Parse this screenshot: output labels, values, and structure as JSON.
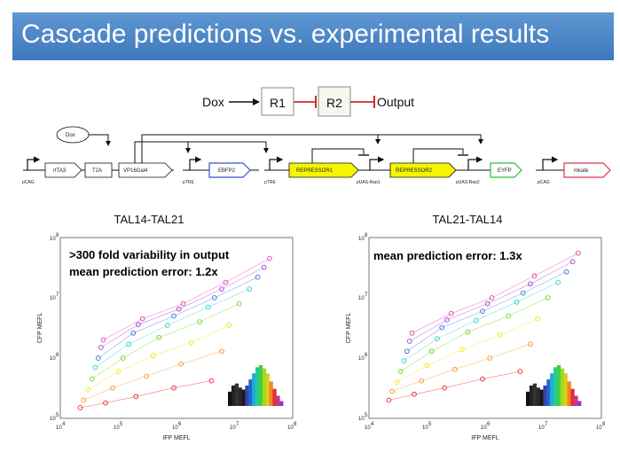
{
  "slide": {
    "title": "Cascade predictions vs. experimental results"
  },
  "cascade": {
    "input": "Dox",
    "node1": "R1",
    "node2": "R2",
    "output": "Output"
  },
  "circuit": {
    "dox": "Dox",
    "parts": {
      "rtta3": "rtTA3",
      "t2a": "T2A",
      "vp16gal4": "VP16Gal4",
      "ebfp2": "EBFP2",
      "repressor1": "REPRESSOR1",
      "repressor2": "REPRESSOR2",
      "eyfp": "EYFP",
      "mkate": "mkate"
    },
    "promoters": {
      "pcag1": "pCAG",
      "ptre1": "pTRE",
      "ptre2": "pTRE",
      "puas1": "pUAS-Rep1",
      "puas2": "pUAS-Rep2",
      "pcag2": "pCAG"
    }
  },
  "colors": {
    "repressor_fill": "#f5f500",
    "ebfp2_border": "#3b4fd6",
    "eyfp_border": "#33bb33",
    "mkate_border": "#d9364f",
    "title_bar": "#4a86c8",
    "inhibit": "#d62a2a"
  },
  "plots": [
    {
      "title": "TAL14-TAL21",
      "xlabel": "IFP MEFL",
      "ylabel": "CFP MEFL",
      "annotations": [
        ">300 fold variability in output",
        "mean prediction error: 1.2x"
      ],
      "x_ticks": [
        "10",
        "10",
        "10",
        "10",
        "10"
      ],
      "x_tick_exps": [
        "4",
        "5",
        "6",
        "7",
        "8"
      ],
      "y_ticks": [
        "10",
        "10",
        "10",
        "10"
      ],
      "y_tick_exps": [
        "5",
        "6",
        "7",
        "8"
      ]
    },
    {
      "title": "TAL21-TAL14",
      "xlabel": "IFP MEFL",
      "ylabel": "CFP MEFL",
      "annotations": [
        "mean prediction error: 1.3x"
      ],
      "x_ticks": [
        "10",
        "10",
        "10",
        "10",
        "10"
      ],
      "x_tick_exps": [
        "4",
        "5",
        "6",
        "7",
        "8"
      ],
      "y_ticks": [
        "10",
        "10",
        "10",
        "10"
      ],
      "y_tick_exps": [
        "5",
        "6",
        "7",
        "8"
      ]
    }
  ],
  "chart_data": [
    {
      "type": "scatter",
      "title": "TAL14-TAL21",
      "xlabel": "IFP MEFL",
      "ylabel": "CFP MEFL",
      "x_scale": "log",
      "y_scale": "log",
      "xlim": [
        10000,
        100000000
      ],
      "ylim": [
        100000,
        100000000
      ],
      "series": [
        {
          "color": "#e6222b",
          "x": [
            22000,
            60000,
            200000,
            900000,
            4000000
          ],
          "y": [
            150000,
            180000,
            230000,
            320000,
            420000
          ]
        },
        {
          "color": "#ff8c1a",
          "x": [
            25000,
            80000,
            300000,
            1200000,
            6000000
          ],
          "y": [
            200000,
            320000,
            500000,
            800000,
            1300000
          ]
        },
        {
          "color": "#f2e600",
          "x": [
            30000,
            100000,
            400000,
            1800000,
            8000000
          ],
          "y": [
            300000,
            600000,
            1100000,
            1800000,
            3500000
          ]
        },
        {
          "color": "#66d61a",
          "x": [
            35000,
            120000,
            500000,
            2500000,
            12000000
          ],
          "y": [
            450000,
            1000000,
            2200000,
            4000000,
            8000000
          ]
        },
        {
          "color": "#1ad6c8",
          "x": [
            40000,
            150000,
            700000,
            3500000,
            18000000
          ],
          "y": [
            700000,
            1700000,
            3500000,
            7000000,
            14000000
          ]
        },
        {
          "color": "#3a6be6",
          "x": [
            45000,
            180000,
            900000,
            4500000,
            25000000
          ],
          "y": [
            1000000,
            2600000,
            5000000,
            10000000,
            22000000
          ]
        },
        {
          "color": "#a33ad6",
          "x": [
            50000,
            220000,
            1100000,
            6000000,
            32000000
          ],
          "y": [
            1500000,
            3600000,
            6500000,
            14000000,
            32000000
          ]
        },
        {
          "color": "#e63aa8",
          "x": [
            55000,
            260000,
            1300000,
            7000000,
            40000000
          ],
          "y": [
            2000000,
            4500000,
            8000000,
            18000000,
            45000000
          ]
        }
      ]
    },
    {
      "type": "scatter",
      "title": "TAL21-TAL14",
      "xlabel": "IFP MEFL",
      "ylabel": "CFP MEFL",
      "x_scale": "log",
      "y_scale": "log",
      "xlim": [
        10000,
        100000000
      ],
      "ylim": [
        100000,
        100000000
      ],
      "series": [
        {
          "color": "#e6222b",
          "x": [
            22000,
            60000,
            200000,
            900000,
            4000000
          ],
          "y": [
            200000,
            250000,
            320000,
            450000,
            600000
          ]
        },
        {
          "color": "#ff8c1a",
          "x": [
            25000,
            80000,
            300000,
            1200000,
            6000000
          ],
          "y": [
            280000,
            420000,
            650000,
            1000000,
            1700000
          ]
        },
        {
          "color": "#f2e600",
          "x": [
            30000,
            100000,
            400000,
            1800000,
            8000000
          ],
          "y": [
            400000,
            750000,
            1400000,
            2400000,
            4500000
          ]
        },
        {
          "color": "#66d61a",
          "x": [
            35000,
            120000,
            500000,
            2500000,
            12000000
          ],
          "y": [
            600000,
            1300000,
            2700000,
            5000000,
            10000000
          ]
        },
        {
          "color": "#1ad6c8",
          "x": [
            40000,
            150000,
            700000,
            3500000,
            18000000
          ],
          "y": [
            900000,
            2100000,
            4200000,
            8500000,
            18000000
          ]
        },
        {
          "color": "#3a6be6",
          "x": [
            45000,
            180000,
            900000,
            4500000,
            25000000
          ],
          "y": [
            1300000,
            3200000,
            6000000,
            12000000,
            27000000
          ]
        },
        {
          "color": "#a33ad6",
          "x": [
            50000,
            220000,
            1100000,
            6000000,
            32000000
          ],
          "y": [
            1900000,
            4300000,
            8000000,
            17000000,
            40000000
          ]
        },
        {
          "color": "#e63aa8",
          "x": [
            55000,
            260000,
            1300000,
            7000000,
            40000000
          ],
          "y": [
            2600000,
            5500000,
            10000000,
            23000000,
            55000000
          ]
        }
      ]
    }
  ]
}
